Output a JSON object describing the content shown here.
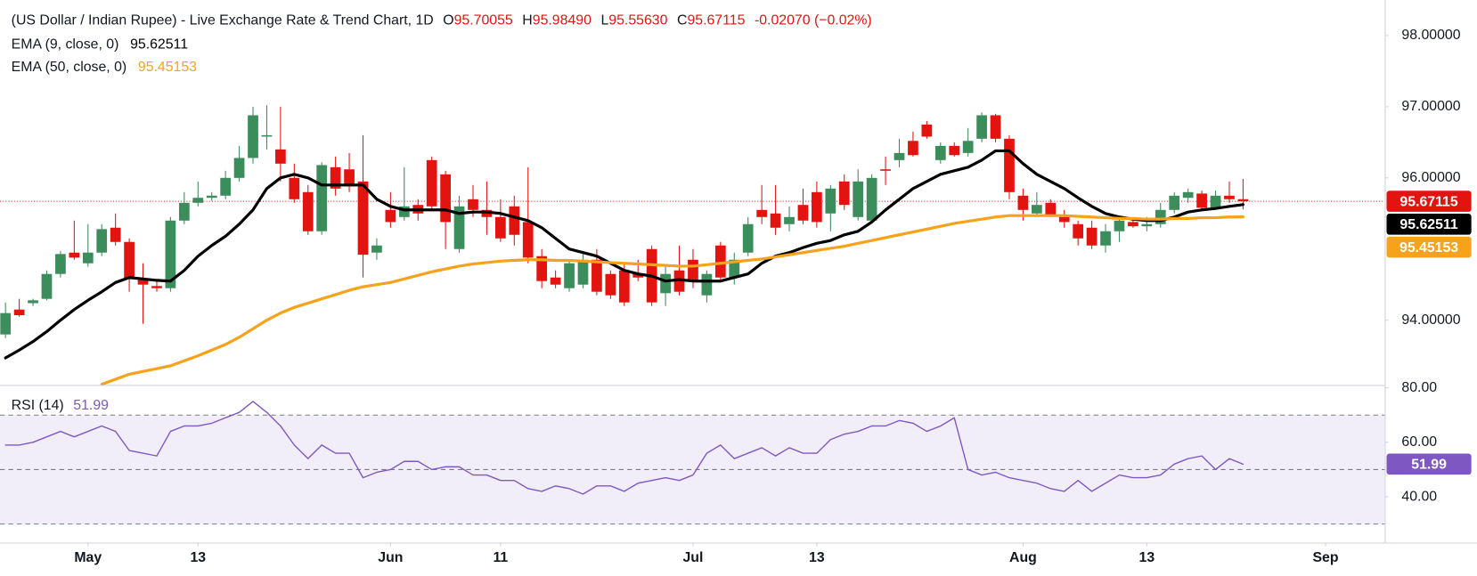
{
  "chart_data": [
    {
      "type": "candlestick",
      "title": "(US Dollar / Indian Rupee) - Live Exchange Rate & Trend Chart, 1D",
      "ohlc_names": [
        "O",
        "H",
        "L",
        "C"
      ],
      "ohlc_labels": [
        "95.70055",
        "95.98490",
        "95.55630",
        "95.67115"
      ],
      "change": "-0.02070 (−0.02%)",
      "up_color": "#3b8d5c",
      "down_color": "#e3140f",
      "xlim": [
        -0.4,
        100.3
      ],
      "xticks": [
        {
          "value": 6,
          "label": "May"
        },
        {
          "value": 14,
          "label": "13"
        },
        {
          "value": 28,
          "label": "Jun"
        },
        {
          "value": 36,
          "label": "11"
        },
        {
          "value": 50,
          "label": "Jul"
        },
        {
          "value": 59,
          "label": "13"
        },
        {
          "value": 74,
          "label": "Aug"
        },
        {
          "value": 83,
          "label": "13"
        },
        {
          "value": 96,
          "label": "Sep"
        }
      ],
      "ylim": [
        93.09,
        98.5
      ],
      "yticks": [
        {
          "value": 94,
          "label": "94.00000"
        },
        {
          "value": 96,
          "label": "96.00000"
        },
        {
          "value": 97,
          "label": "97.00000"
        },
        {
          "value": 98,
          "label": "98.00000"
        }
      ],
      "candles": [
        {
          "open": 93.8,
          "high": 94.25,
          "low": 93.75,
          "close": 94.1
        },
        {
          "open": 94.15,
          "high": 94.3,
          "low": 94.05,
          "close": 94.07
        },
        {
          "open": 94.24,
          "high": 94.3,
          "low": 94.2,
          "close": 94.28
        },
        {
          "open": 94.3,
          "high": 94.7,
          "low": 94.28,
          "close": 94.65
        },
        {
          "open": 94.65,
          "high": 94.97,
          "low": 94.6,
          "close": 94.93
        },
        {
          "open": 94.95,
          "high": 95.4,
          "low": 94.85,
          "close": 94.88
        },
        {
          "open": 94.8,
          "high": 95.35,
          "low": 94.75,
          "close": 94.95
        },
        {
          "open": 94.95,
          "high": 95.35,
          "low": 94.9,
          "close": 95.28
        },
        {
          "open": 95.3,
          "high": 95.5,
          "low": 95.05,
          "close": 95.1
        },
        {
          "open": 95.1,
          "high": 95.15,
          "low": 94.4,
          "close": 94.58
        },
        {
          "open": 94.58,
          "high": 94.8,
          "low": 93.95,
          "close": 94.5
        },
        {
          "open": 94.48,
          "high": 94.55,
          "low": 94.4,
          "close": 94.45
        },
        {
          "open": 94.45,
          "high": 95.45,
          "low": 94.4,
          "close": 95.4
        },
        {
          "open": 95.4,
          "high": 95.8,
          "low": 95.35,
          "close": 95.65
        },
        {
          "open": 95.65,
          "high": 95.95,
          "low": 95.6,
          "close": 95.72
        },
        {
          "open": 95.72,
          "high": 95.8,
          "low": 95.68,
          "close": 95.75
        },
        {
          "open": 95.75,
          "high": 96.1,
          "low": 95.7,
          "close": 96.0
        },
        {
          "open": 96.0,
          "high": 96.45,
          "low": 95.95,
          "close": 96.28
        },
        {
          "open": 96.28,
          "high": 97.0,
          "low": 96.2,
          "close": 96.88
        },
        {
          "open": 96.58,
          "high": 97.02,
          "low": 96.4,
          "close": 96.6
        },
        {
          "open": 96.4,
          "high": 97.0,
          "low": 95.95,
          "close": 96.2
        },
        {
          "open": 96.0,
          "high": 96.2,
          "low": 95.65,
          "close": 95.7
        },
        {
          "open": 95.8,
          "high": 95.9,
          "low": 95.2,
          "close": 95.25
        },
        {
          "open": 95.25,
          "high": 96.22,
          "low": 95.2,
          "close": 96.18
        },
        {
          "open": 96.15,
          "high": 96.3,
          "low": 95.75,
          "close": 95.85
        },
        {
          "open": 96.12,
          "high": 96.35,
          "low": 95.8,
          "close": 95.88
        },
        {
          "open": 95.95,
          "high": 96.6,
          "low": 94.6,
          "close": 94.92
        },
        {
          "open": 94.95,
          "high": 95.15,
          "low": 94.85,
          "close": 95.05
        },
        {
          "open": 95.55,
          "high": 95.8,
          "low": 95.3,
          "close": 95.38
        },
        {
          "open": 95.45,
          "high": 96.15,
          "low": 95.4,
          "close": 95.6
        },
        {
          "open": 95.62,
          "high": 95.7,
          "low": 95.4,
          "close": 95.5
        },
        {
          "open": 96.25,
          "high": 96.3,
          "low": 95.55,
          "close": 95.6
        },
        {
          "open": 96.05,
          "high": 96.1,
          "low": 95.0,
          "close": 95.38
        },
        {
          "open": 95.0,
          "high": 95.75,
          "low": 94.95,
          "close": 95.6
        },
        {
          "open": 95.7,
          "high": 95.9,
          "low": 95.45,
          "close": 95.55
        },
        {
          "open": 95.55,
          "high": 95.95,
          "low": 95.2,
          "close": 95.45
        },
        {
          "open": 95.45,
          "high": 95.7,
          "low": 95.1,
          "close": 95.15
        },
        {
          "open": 95.6,
          "high": 95.75,
          "low": 95.05,
          "close": 95.2
        },
        {
          "open": 95.38,
          "high": 96.15,
          "low": 94.8,
          "close": 94.88
        },
        {
          "open": 94.9,
          "high": 95.0,
          "low": 94.45,
          "close": 94.55
        },
        {
          "open": 94.6,
          "high": 94.7,
          "low": 94.45,
          "close": 94.5
        },
        {
          "open": 94.45,
          "high": 94.85,
          "low": 94.4,
          "close": 94.8
        },
        {
          "open": 94.5,
          "high": 94.95,
          "low": 94.45,
          "close": 94.85
        },
        {
          "open": 94.85,
          "high": 95.0,
          "low": 94.35,
          "close": 94.4
        },
        {
          "open": 94.65,
          "high": 94.7,
          "low": 94.3,
          "close": 94.35
        },
        {
          "open": 94.7,
          "high": 94.8,
          "low": 94.2,
          "close": 94.25
        },
        {
          "open": 94.65,
          "high": 94.85,
          "low": 94.55,
          "close": 94.6
        },
        {
          "open": 95.0,
          "high": 95.05,
          "low": 94.2,
          "close": 94.25
        },
        {
          "open": 94.38,
          "high": 94.75,
          "low": 94.2,
          "close": 94.65
        },
        {
          "open": 94.7,
          "high": 95.05,
          "low": 94.35,
          "close": 94.4
        },
        {
          "open": 94.85,
          "high": 95.0,
          "low": 94.45,
          "close": 94.55
        },
        {
          "open": 94.35,
          "high": 94.7,
          "low": 94.25,
          "close": 94.65
        },
        {
          "open": 95.05,
          "high": 95.1,
          "low": 94.55,
          "close": 94.6
        },
        {
          "open": 94.6,
          "high": 94.95,
          "low": 94.5,
          "close": 94.85
        },
        {
          "open": 94.95,
          "high": 95.45,
          "low": 94.9,
          "close": 95.35
        },
        {
          "open": 95.55,
          "high": 95.9,
          "low": 95.35,
          "close": 95.45
        },
        {
          "open": 95.5,
          "high": 95.9,
          "low": 95.2,
          "close": 95.3
        },
        {
          "open": 95.35,
          "high": 95.6,
          "low": 95.25,
          "close": 95.45
        },
        {
          "open": 95.62,
          "high": 95.85,
          "low": 95.35,
          "close": 95.4
        },
        {
          "open": 95.8,
          "high": 95.95,
          "low": 95.3,
          "close": 95.38
        },
        {
          "open": 95.5,
          "high": 95.9,
          "low": 95.25,
          "close": 95.85
        },
        {
          "open": 95.95,
          "high": 96.05,
          "low": 95.55,
          "close": 95.62
        },
        {
          "open": 95.45,
          "high": 96.12,
          "low": 95.4,
          "close": 95.95
        },
        {
          "open": 95.4,
          "high": 96.05,
          "low": 95.38,
          "close": 96.0
        },
        {
          "open": 96.12,
          "high": 96.3,
          "low": 95.9,
          "close": 96.1
        },
        {
          "open": 96.25,
          "high": 96.55,
          "low": 96.15,
          "close": 96.35
        },
        {
          "open": 96.52,
          "high": 96.65,
          "low": 96.3,
          "close": 96.32
        },
        {
          "open": 96.75,
          "high": 96.8,
          "low": 96.55,
          "close": 96.58
        },
        {
          "open": 96.25,
          "high": 96.5,
          "low": 96.2,
          "close": 96.45
        },
        {
          "open": 96.45,
          "high": 96.5,
          "low": 96.3,
          "close": 96.32
        },
        {
          "open": 96.35,
          "high": 96.7,
          "low": 96.3,
          "close": 96.52
        },
        {
          "open": 96.55,
          "high": 96.92,
          "low": 96.5,
          "close": 96.88
        },
        {
          "open": 96.88,
          "high": 96.9,
          "low": 96.5,
          "close": 96.55
        },
        {
          "open": 96.55,
          "high": 96.6,
          "low": 95.7,
          "close": 95.8
        },
        {
          "open": 95.75,
          "high": 95.85,
          "low": 95.4,
          "close": 95.55
        },
        {
          "open": 95.5,
          "high": 95.8,
          "low": 95.45,
          "close": 95.62
        },
        {
          "open": 95.65,
          "high": 95.7,
          "low": 95.45,
          "close": 95.48
        },
        {
          "open": 95.45,
          "high": 95.55,
          "low": 95.3,
          "close": 95.38
        },
        {
          "open": 95.35,
          "high": 95.4,
          "low": 95.05,
          "close": 95.15
        },
        {
          "open": 95.3,
          "high": 95.4,
          "low": 95.0,
          "close": 95.05
        },
        {
          "open": 95.05,
          "high": 95.35,
          "low": 94.95,
          "close": 95.25
        },
        {
          "open": 95.25,
          "high": 95.45,
          "low": 95.1,
          "close": 95.4
        },
        {
          "open": 95.38,
          "high": 95.42,
          "low": 95.3,
          "close": 95.32
        },
        {
          "open": 95.32,
          "high": 95.45,
          "low": 95.25,
          "close": 95.35
        },
        {
          "open": 95.35,
          "high": 95.65,
          "low": 95.3,
          "close": 95.55
        },
        {
          "open": 95.55,
          "high": 95.8,
          "low": 95.5,
          "close": 95.75
        },
        {
          "open": 95.72,
          "high": 95.85,
          "low": 95.65,
          "close": 95.8
        },
        {
          "open": 95.78,
          "high": 95.82,
          "low": 95.55,
          "close": 95.58
        },
        {
          "open": 95.58,
          "high": 95.82,
          "low": 95.55,
          "close": 95.75
        },
        {
          "open": 95.75,
          "high": 95.95,
          "low": 95.65,
          "close": 95.7
        },
        {
          "open": 95.70055,
          "high": 95.9849,
          "low": 95.5563,
          "close": 95.67115
        }
      ],
      "series": [
        {
          "name": "EMA (9, close, 0)",
          "color": "#000000",
          "values": [
            93.47,
            93.58,
            93.7,
            93.84,
            94.0,
            94.15,
            94.28,
            94.4,
            94.53,
            94.6,
            94.58,
            94.56,
            94.55,
            94.7,
            94.9,
            95.05,
            95.18,
            95.35,
            95.55,
            95.85,
            96.0,
            96.05,
            96.0,
            95.9,
            95.9,
            95.9,
            95.9,
            95.7,
            95.6,
            95.55,
            95.55,
            95.55,
            95.55,
            95.5,
            95.52,
            95.52,
            95.5,
            95.45,
            95.4,
            95.3,
            95.15,
            95.0,
            94.95,
            94.9,
            94.8,
            94.7,
            94.65,
            94.62,
            94.55,
            94.57,
            94.55,
            94.55,
            94.55,
            94.6,
            94.65,
            94.8,
            94.9,
            94.95,
            95.02,
            95.08,
            95.12,
            95.2,
            95.25,
            95.38,
            95.55,
            95.7,
            95.85,
            95.95,
            96.05,
            96.1,
            96.15,
            96.25,
            96.38,
            96.38,
            96.2,
            96.05,
            95.95,
            95.85,
            95.72,
            95.6,
            95.5,
            95.45,
            95.42,
            95.4,
            95.4,
            95.45,
            95.52,
            95.55,
            95.57,
            95.6,
            95.62511
          ]
        },
        {
          "name": "EMA (50, close, 0)",
          "color": "#f7a21b",
          "values": [
            null,
            null,
            null,
            null,
            null,
            null,
            null,
            93.1,
            93.17,
            93.24,
            93.28,
            93.32,
            93.36,
            93.43,
            93.5,
            93.58,
            93.66,
            93.76,
            93.88,
            94.0,
            94.1,
            94.18,
            94.24,
            94.3,
            94.36,
            94.42,
            94.47,
            94.5,
            94.53,
            94.58,
            94.63,
            94.68,
            94.72,
            94.76,
            94.79,
            94.81,
            94.83,
            94.84,
            94.85,
            94.85,
            94.84,
            94.84,
            94.83,
            94.82,
            94.81,
            94.8,
            94.79,
            94.78,
            94.77,
            94.76,
            94.76,
            94.78,
            94.8,
            94.82,
            94.84,
            94.86,
            94.89,
            94.92,
            94.95,
            94.98,
            95.01,
            95.04,
            95.08,
            95.12,
            95.16,
            95.2,
            95.24,
            95.28,
            95.32,
            95.36,
            95.39,
            95.42,
            95.45,
            95.47,
            95.47,
            95.47,
            95.47,
            95.47,
            95.46,
            95.45,
            95.44,
            95.43,
            95.43,
            95.42,
            95.42,
            95.43,
            95.43,
            95.44,
            95.44,
            95.45,
            95.45153
          ]
        }
      ]
    },
    {
      "type": "line",
      "xlim": [
        -0.4,
        100.3
      ],
      "ylim": [
        23.2,
        80.7
      ],
      "yticks": [
        {
          "value": 40,
          "label": "40.00"
        },
        {
          "value": 60,
          "label": "60.00"
        },
        {
          "value": 80,
          "label": "80.00"
        }
      ],
      "levels": [
        30,
        50,
        70
      ],
      "series": [
        {
          "name": "RSI (14)",
          "color": "#7e57c2",
          "values": [
            59,
            59,
            60,
            62,
            64,
            62,
            64,
            66,
            64,
            57,
            56,
            55,
            64,
            66,
            66,
            67,
            69,
            71,
            75,
            71,
            66,
            59,
            54,
            59,
            56,
            56,
            47,
            49,
            50,
            53,
            53,
            50,
            51,
            51,
            48,
            48,
            46,
            46,
            43,
            42,
            44,
            43,
            41,
            44,
            44,
            42,
            45,
            46,
            47,
            46,
            48,
            56,
            59,
            54,
            56,
            58,
            55,
            58,
            56,
            56,
            61,
            63,
            64,
            66,
            66,
            68,
            67,
            64,
            66,
            69,
            50,
            48,
            49,
            47,
            46,
            45,
            43,
            42,
            46,
            42,
            45,
            48,
            47,
            47,
            48,
            52,
            54,
            55,
            50,
            54,
            51.99
          ]
        }
      ]
    }
  ]
}
